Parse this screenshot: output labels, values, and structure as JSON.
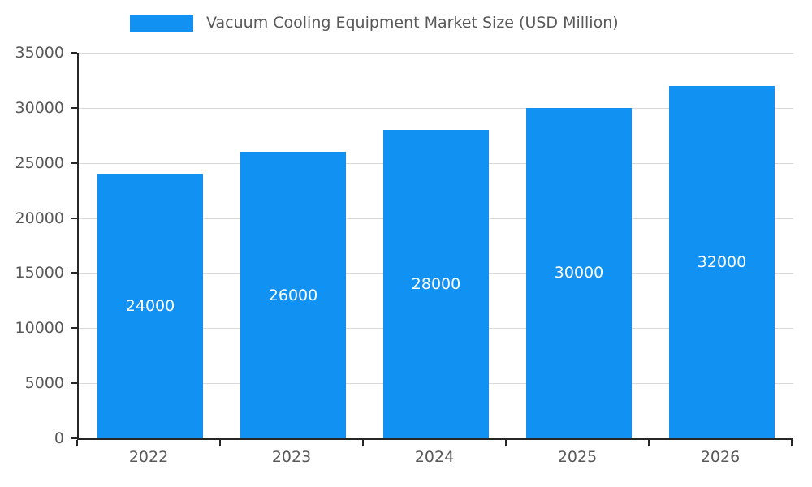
{
  "chart_data": {
    "type": "bar",
    "title": "Vacuum Cooling Equipment Market Size (USD Million)",
    "categories": [
      "2022",
      "2023",
      "2024",
      "2025",
      "2026"
    ],
    "values": [
      24000,
      26000,
      28000,
      30000,
      32000
    ],
    "value_labels": [
      "24000",
      "26000",
      "28000",
      "30000",
      "32000"
    ],
    "xlabel": "",
    "ylabel": "",
    "ylim": [
      0,
      35000
    ],
    "ytick_step": 5000,
    "ytick_labels": [
      "0",
      "5000",
      "10000",
      "15000",
      "20000",
      "25000",
      "30000",
      "35000"
    ],
    "grid": true,
    "legend_position": "top",
    "colors": {
      "bar": "#1191F1",
      "bar_label_text": "#ffffff",
      "axis_line": "#262626",
      "gridline": "#d9d9d9",
      "tick_text": "#595959",
      "legend_text": "#595959",
      "background": "#ffffff"
    }
  }
}
